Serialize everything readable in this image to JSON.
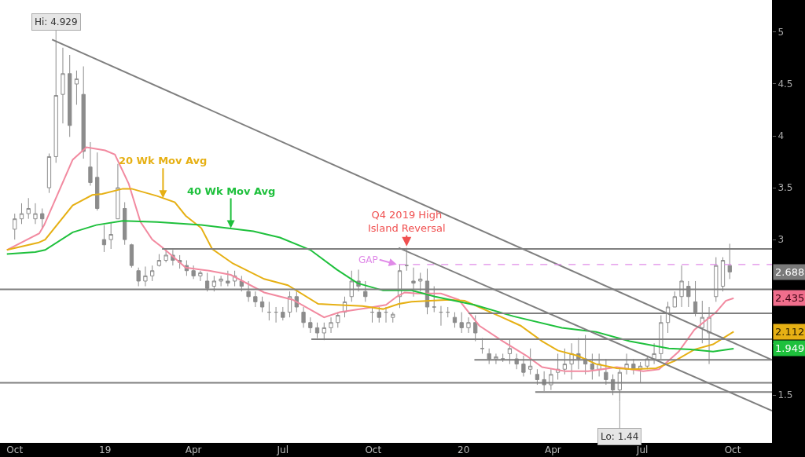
{
  "chart_data": {
    "type": "candlestick",
    "x": [
      "2018-10-01",
      "2018-10-08",
      "2018-10-15",
      "2018-10-22",
      "2018-10-29",
      "2018-11-05",
      "2018-11-12",
      "2018-11-19",
      "2018-11-26",
      "2018-12-03",
      "2018-12-10",
      "2018-12-17",
      "2018-12-24",
      "2018-12-31",
      "2019-01-07",
      "2019-01-14",
      "2019-01-21",
      "2019-01-28",
      "2019-02-04",
      "2019-02-11",
      "2019-02-18",
      "2019-02-25",
      "2019-03-04",
      "2019-03-11",
      "2019-03-18",
      "2019-03-25",
      "2019-04-01",
      "2019-04-08",
      "2019-04-15",
      "2019-04-22",
      "2019-04-29",
      "2019-05-06",
      "2019-05-13",
      "2019-05-20",
      "2019-05-27",
      "2019-06-03",
      "2019-06-10",
      "2019-06-17",
      "2019-06-24",
      "2019-07-01",
      "2019-07-08",
      "2019-07-15",
      "2019-07-22",
      "2019-07-29",
      "2019-08-05",
      "2019-08-12",
      "2019-08-19",
      "2019-08-26",
      "2019-09-02",
      "2019-09-09",
      "2019-09-16",
      "2019-09-23",
      "2019-09-30",
      "2019-10-07",
      "2019-10-14",
      "2019-10-21",
      "2019-10-28",
      "2019-11-04",
      "2019-11-11",
      "2019-11-18",
      "2019-11-25",
      "2019-12-02",
      "2019-12-09",
      "2019-12-16",
      "2019-12-23",
      "2019-12-30",
      "2020-01-06",
      "2020-01-13",
      "2020-01-20",
      "2020-01-27",
      "2020-02-03",
      "2020-02-10",
      "2020-02-17",
      "2020-02-24",
      "2020-03-02",
      "2020-03-09",
      "2020-03-16",
      "2020-03-23",
      "2020-03-30",
      "2020-04-06",
      "2020-04-13",
      "2020-04-20",
      "2020-04-27",
      "2020-05-04",
      "2020-05-11",
      "2020-05-18",
      "2020-05-25",
      "2020-06-01",
      "2020-06-08",
      "2020-06-15",
      "2020-06-22",
      "2020-06-29",
      "2020-07-06",
      "2020-07-13",
      "2020-07-20",
      "2020-07-27",
      "2020-08-03",
      "2020-08-10",
      "2020-08-17",
      "2020-08-24",
      "2020-08-31",
      "2020-09-07",
      "2020-09-14",
      "2020-09-21",
      "2020-09-28"
    ],
    "ohlc": [
      [
        3.1,
        3.25,
        3.0,
        3.2
      ],
      [
        3.2,
        3.35,
        3.15,
        3.25
      ],
      [
        3.25,
        3.4,
        3.2,
        3.3
      ],
      [
        3.2,
        3.35,
        3.15,
        3.25
      ],
      [
        3.25,
        3.3,
        3.1,
        3.2
      ],
      [
        3.5,
        3.83,
        3.45,
        3.8
      ],
      [
        3.8,
        4.929,
        3.74,
        4.39
      ],
      [
        4.4,
        4.85,
        4.12,
        4.6
      ],
      [
        4.6,
        4.78,
        3.99,
        4.1
      ],
      [
        4.5,
        4.63,
        4.3,
        4.55
      ],
      [
        4.4,
        4.67,
        3.78,
        3.85
      ],
      [
        3.7,
        3.94,
        3.52,
        3.55
      ],
      [
        3.6,
        3.84,
        3.28,
        3.3
      ],
      [
        3.0,
        3.14,
        2.88,
        2.95
      ],
      [
        3.0,
        3.16,
        2.91,
        3.05
      ],
      [
        3.2,
        3.73,
        3.2,
        3.5
      ],
      [
        3.3,
        3.36,
        2.95,
        3.0
      ],
      [
        2.95,
        2.96,
        2.73,
        2.75
      ],
      [
        2.7,
        2.73,
        2.55,
        2.6
      ],
      [
        2.6,
        2.74,
        2.55,
        2.65
      ],
      [
        2.65,
        2.75,
        2.6,
        2.7
      ],
      [
        2.75,
        2.86,
        2.74,
        2.8
      ],
      [
        2.8,
        2.9,
        2.78,
        2.85
      ],
      [
        2.85,
        2.9,
        2.75,
        2.8
      ],
      [
        2.8,
        2.85,
        2.72,
        2.78
      ],
      [
        2.75,
        2.8,
        2.65,
        2.7
      ],
      [
        2.7,
        2.75,
        2.62,
        2.65
      ],
      [
        2.65,
        2.7,
        2.6,
        2.68
      ],
      [
        2.6,
        2.68,
        2.5,
        2.53
      ],
      [
        2.55,
        2.65,
        2.5,
        2.6
      ],
      [
        2.6,
        2.65,
        2.55,
        2.62
      ],
      [
        2.6,
        2.7,
        2.55,
        2.58
      ],
      [
        2.6,
        2.7,
        2.55,
        2.65
      ],
      [
        2.6,
        2.65,
        2.5,
        2.55
      ],
      [
        2.5,
        2.6,
        2.4,
        2.45
      ],
      [
        2.45,
        2.5,
        2.35,
        2.4
      ],
      [
        2.4,
        2.45,
        2.3,
        2.35
      ],
      [
        2.3,
        2.4,
        2.22,
        2.3
      ],
      [
        2.3,
        2.35,
        2.2,
        2.3
      ],
      [
        2.3,
        2.35,
        2.22,
        2.25
      ],
      [
        2.3,
        2.5,
        2.25,
        2.45
      ],
      [
        2.45,
        2.5,
        2.3,
        2.35
      ],
      [
        2.3,
        2.35,
        2.15,
        2.2
      ],
      [
        2.2,
        2.25,
        2.1,
        2.15
      ],
      [
        2.15,
        2.2,
        2.05,
        2.1
      ],
      [
        2.1,
        2.2,
        2.03,
        2.15
      ],
      [
        2.15,
        2.25,
        2.1,
        2.2
      ],
      [
        2.2,
        2.3,
        2.15,
        2.27
      ],
      [
        2.3,
        2.45,
        2.25,
        2.4
      ],
      [
        2.45,
        2.7,
        2.4,
        2.6
      ],
      [
        2.6,
        2.71,
        2.5,
        2.55
      ],
      [
        2.5,
        2.6,
        2.4,
        2.45
      ],
      [
        2.3,
        2.35,
        2.2,
        2.3
      ],
      [
        2.3,
        2.35,
        2.2,
        2.25
      ],
      [
        2.3,
        2.35,
        2.2,
        2.3
      ],
      [
        2.25,
        2.3,
        2.2,
        2.28
      ],
      [
        2.45,
        2.76,
        2.34,
        2.7
      ],
      [
        2.75,
        2.92,
        2.7,
        2.75
      ],
      [
        2.6,
        2.73,
        2.45,
        2.58
      ],
      [
        2.6,
        2.68,
        2.5,
        2.62
      ],
      [
        2.6,
        2.72,
        2.28,
        2.35
      ],
      [
        2.35,
        2.55,
        2.3,
        2.35
      ],
      [
        2.3,
        2.36,
        2.17,
        2.3
      ],
      [
        2.3,
        2.35,
        2.25,
        2.3
      ],
      [
        2.25,
        2.3,
        2.15,
        2.2
      ],
      [
        2.2,
        2.3,
        2.1,
        2.15
      ],
      [
        2.15,
        2.25,
        2.1,
        2.2
      ],
      [
        2.2,
        2.27,
        2.02,
        2.1
      ],
      [
        1.95,
        2.05,
        1.9,
        1.95
      ],
      [
        1.9,
        1.95,
        1.8,
        1.85
      ],
      [
        1.85,
        1.9,
        1.8,
        1.87
      ],
      [
        1.85,
        1.9,
        1.82,
        1.85
      ],
      [
        1.9,
        2.04,
        1.8,
        1.95
      ],
      [
        1.85,
        1.9,
        1.75,
        1.8
      ],
      [
        1.8,
        1.88,
        1.68,
        1.72
      ],
      [
        1.75,
        1.95,
        1.7,
        1.78
      ],
      [
        1.7,
        1.75,
        1.6,
        1.65
      ],
      [
        1.65,
        1.73,
        1.54,
        1.6
      ],
      [
        1.6,
        1.75,
        1.55,
        1.7
      ],
      [
        1.72,
        1.9,
        1.65,
        1.75
      ],
      [
        1.75,
        1.95,
        1.7,
        1.8
      ],
      [
        1.8,
        2.0,
        1.65,
        1.9
      ],
      [
        1.9,
        2.05,
        1.75,
        1.85
      ],
      [
        1.85,
        2.08,
        1.7,
        1.8
      ],
      [
        1.8,
        1.9,
        1.65,
        1.75
      ],
      [
        1.75,
        1.9,
        1.68,
        1.8
      ],
      [
        1.72,
        1.85,
        1.6,
        1.65
      ],
      [
        1.65,
        1.7,
        1.5,
        1.55
      ],
      [
        1.55,
        1.75,
        1.44,
        1.72
      ],
      [
        1.75,
        1.9,
        1.7,
        1.8
      ],
      [
        1.8,
        1.85,
        1.7,
        1.75
      ],
      [
        1.75,
        1.82,
        1.62,
        1.78
      ],
      [
        1.78,
        1.88,
        1.75,
        1.85
      ],
      [
        1.85,
        2.0,
        1.8,
        1.9
      ],
      [
        1.9,
        2.27,
        1.85,
        2.2
      ],
      [
        2.2,
        2.4,
        2.1,
        2.35
      ],
      [
        2.35,
        2.5,
        2.35,
        2.45
      ],
      [
        2.45,
        2.75,
        2.35,
        2.6
      ],
      [
        2.55,
        2.6,
        2.35,
        2.45
      ],
      [
        2.4,
        2.6,
        2.26,
        2.3
      ],
      [
        2.15,
        2.41,
        2.0,
        2.25
      ],
      [
        2.1,
        2.35,
        1.8,
        2.25
      ],
      [
        2.45,
        2.83,
        2.4,
        2.75
      ],
      [
        2.55,
        2.83,
        2.5,
        2.8
      ],
      [
        2.75,
        2.96,
        2.62,
        2.688
      ]
    ],
    "color": "#8c8c8c",
    "series": [
      {
        "type": "line",
        "color": "#f28aa0",
        "x": [
          "2018-09-23",
          "2018-10-26",
          "2018-10-31",
          "2018-11-29",
          "2018-12-13",
          "2019-01-01",
          "2019-01-11",
          "2019-01-25",
          "2019-02-06",
          "2019-02-18",
          "2019-03-01",
          "2019-03-24",
          "2019-04-17",
          "2019-05-09",
          "2019-06-12",
          "2019-07-11",
          "2019-08-12",
          "2019-08-28",
          "2019-09-25",
          "2019-10-14",
          "2019-10-25",
          "2019-11-02",
          "2019-11-15",
          "2019-12-09",
          "2019-12-27",
          "2020-01-17",
          "2020-02-10",
          "2020-03-05",
          "2020-03-21",
          "2020-04-14",
          "2020-05-07",
          "2020-06-05",
          "2020-07-02",
          "2020-07-18",
          "2020-08-07",
          "2020-08-23",
          "2020-09-14",
          "2020-09-24",
          "2020-10-02"
        ],
        "values": [
          2.9,
          3.06,
          3.14,
          3.77,
          3.89,
          3.86,
          3.82,
          3.54,
          3.17,
          3.0,
          2.92,
          2.73,
          2.7,
          2.66,
          2.49,
          2.42,
          2.25,
          2.3,
          2.34,
          2.37,
          2.45,
          2.49,
          2.48,
          2.48,
          2.42,
          2.17,
          2.02,
          1.88,
          1.77,
          1.73,
          1.73,
          1.77,
          1.73,
          1.75,
          1.92,
          2.13,
          2.3,
          2.41,
          2.435
        ]
      },
      {
        "type": "line",
        "color": "#e6b014",
        "x": [
          "2018-09-23",
          "2018-10-25",
          "2018-11-01",
          "2018-11-29",
          "2018-12-19",
          "2018-12-29",
          "2019-01-19",
          "2019-01-28",
          "2019-02-23",
          "2019-03-13",
          "2019-03-24",
          "2019-04-09",
          "2019-04-20",
          "2019-05-11",
          "2019-06-12",
          "2019-07-06",
          "2019-08-06",
          "2019-08-25",
          "2019-09-20",
          "2019-10-11",
          "2019-10-27",
          "2019-11-09",
          "2019-12-17",
          "2020-01-02",
          "2020-02-07",
          "2020-02-28",
          "2020-03-21",
          "2020-04-06",
          "2020-04-26",
          "2020-05-15",
          "2020-06-05",
          "2020-06-21",
          "2020-07-15",
          "2020-08-03",
          "2020-08-23",
          "2020-09-11",
          "2020-10-02"
        ],
        "values": [
          2.9,
          2.97,
          3.0,
          3.33,
          3.43,
          3.44,
          3.49,
          3.49,
          3.42,
          3.36,
          3.23,
          3.11,
          2.91,
          2.77,
          2.62,
          2.56,
          2.38,
          2.37,
          2.36,
          2.33,
          2.38,
          2.4,
          2.42,
          2.41,
          2.26,
          2.17,
          2.02,
          1.93,
          1.88,
          1.8,
          1.76,
          1.75,
          1.76,
          1.83,
          1.94,
          1.99,
          2.112
        ]
      },
      {
        "type": "line",
        "color": "#1ec03c",
        "x": [
          "2018-09-23",
          "2018-10-22",
          "2018-11-01",
          "2018-11-29",
          "2018-12-23",
          "2019-01-19",
          "2019-02-23",
          "2019-04-09",
          "2019-06-01",
          "2019-06-28",
          "2019-07-29",
          "2019-08-25",
          "2019-09-15",
          "2019-10-11",
          "2019-11-09",
          "2019-12-03",
          "2020-01-12",
          "2020-02-21",
          "2020-04-10",
          "2020-05-15",
          "2020-06-18",
          "2020-07-28",
          "2020-08-19",
          "2020-09-11",
          "2020-10-02"
        ],
        "values": [
          2.86,
          2.88,
          2.9,
          3.07,
          3.14,
          3.18,
          3.17,
          3.14,
          3.08,
          3.02,
          2.9,
          2.71,
          2.58,
          2.51,
          2.51,
          2.45,
          2.37,
          2.26,
          2.15,
          2.11,
          2.02,
          1.95,
          1.94,
          1.92,
          1.949
        ]
      },
      {
        "type": "line",
        "color": "#7f7f7f",
        "x": [
          "2018-11-08",
          "2020-11-10"
        ],
        "values": [
          4.929,
          1.84
        ]
      },
      {
        "type": "line",
        "color": "#7f7f7f",
        "x": [
          "2019-10-27",
          "2020-11-10"
        ],
        "values": [
          2.92,
          1.35
        ]
      },
      {
        "type": "line",
        "color": "#7f7f7f",
        "x": [
          "2019-02-28",
          "2020-11-10"
        ],
        "values": [
          2.91,
          2.91
        ]
      },
      {
        "type": "line",
        "color": "#7f7f7f",
        "x": [
          "2020-01-06",
          "2020-11-10"
        ],
        "values": [
          2.29,
          2.29
        ]
      },
      {
        "type": "line",
        "color": "#7f7f7f",
        "x": [
          "2019-07-30",
          "2020-11-10"
        ],
        "values": [
          2.04,
          2.04
        ]
      },
      {
        "type": "line",
        "color": "#7f7f7f",
        "x": [
          "2020-01-12",
          "2020-11-10"
        ],
        "values": [
          1.84,
          1.84
        ]
      },
      {
        "type": "line",
        "color": "#7f7f7f",
        "x": [
          "2020-03-14",
          "2020-11-10"
        ],
        "values": [
          1.53,
          1.53
        ]
      },
      {
        "type": "line",
        "color": "#e08ae8",
        "line_style": "dashed",
        "x": [
          "2019-10-27",
          "2020-11-10"
        ],
        "values": [
          2.76,
          2.76
        ]
      }
    ],
    "ref_lines": [
      {
        "axis": "y",
        "value": 2.52,
        "color": "#7f7f7f"
      },
      {
        "axis": "y",
        "value": 1.62,
        "color": "#7f7f7f"
      }
    ],
    "annotations": [
      {
        "text": "Hi: 4.929",
        "x": "2018-11-12",
        "y": 4.929
      },
      {
        "text": "Lo: 1.44",
        "x": "2020-06-08",
        "y": 1.44
      },
      {
        "text": "20 Wk Mov Avg",
        "x": "2019-03-01",
        "y": 3.4
      },
      {
        "text": "40 Wk Mov Avg",
        "x": "2019-05-09",
        "y": 3.11
      },
      {
        "text": "Q4 2019 High\nIsland Reversal",
        "x": "2019-11-04",
        "y": 2.92
      },
      {
        "text": "GAP",
        "x": "2019-10-25",
        "y": 2.76
      },
      "2.688",
      "2.435",
      "2.112",
      "1.949"
    ],
    "xlim": [
      "2018-09-16",
      "2020-11-10"
    ],
    "xticks": [
      {
        "value": "2018-10-01",
        "label": "Oct"
      },
      {
        "value": "2019-01-01",
        "label": "19"
      },
      {
        "value": "2019-04-01",
        "label": "Apr"
      },
      {
        "value": "2019-07-01",
        "label": "Jul"
      },
      {
        "value": "2019-10-01",
        "label": "Oct"
      },
      {
        "value": "2020-01-01",
        "label": "20"
      },
      {
        "value": "2020-04-01",
        "label": "Apr"
      },
      {
        "value": "2020-07-01",
        "label": "Jul"
      },
      {
        "value": "2020-10-01",
        "label": "Oct"
      }
    ],
    "ylim": [
      1.04,
      5.31
    ],
    "yticks": [
      1.5,
      {
        "value": 2,
        "label": null
      },
      {
        "value": 2.5,
        "label": null
      },
      3,
      3.5,
      4,
      4.5,
      5
    ]
  }
}
